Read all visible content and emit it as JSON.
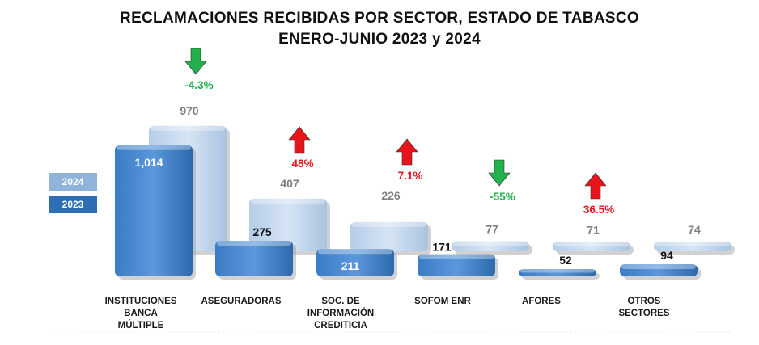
{
  "chart_data": {
    "type": "bar",
    "title": "RECLAMACIONES RECIBIDAS POR SECTOR, ESTADO DE TABASCO",
    "subtitle": "ENERO-JUNIO 2023 y 2024",
    "categories": [
      "INSTITUCIONES\nBANCA\nMÚLTIPLE",
      "ASEGURADORAS",
      "SOC. DE\nINFORMACIÓN\nCREDITICIA",
      "SOFOM ENR",
      "AFORES",
      "OTROS\nSECTORES"
    ],
    "series": [
      {
        "name": "2023",
        "values": [
          1014,
          275,
          211,
          171,
          52,
          94
        ],
        "labels": [
          "1,014",
          "275",
          "211",
          "171",
          "52",
          "94"
        ],
        "color": "#2e6eb5"
      },
      {
        "name": "2024",
        "values": [
          970,
          407,
          226,
          77,
          71,
          74
        ],
        "labels": [
          "970",
          "407",
          "226",
          "77",
          "71",
          "74"
        ],
        "color": "#bcd4ec"
      }
    ],
    "changes": [
      {
        "label": "-4.3%",
        "direction": "down",
        "color": "#22b14c"
      },
      {
        "label": "48%",
        "direction": "up",
        "color": "#e8141b"
      },
      {
        "label": "7.1%",
        "direction": "up",
        "color": "#e8141b"
      },
      {
        "label": "-55%",
        "direction": "down",
        "color": "#22b14c"
      },
      {
        "label": "36.5%",
        "direction": "up",
        "color": "#e8141b"
      },
      {
        "label": "",
        "direction": "none",
        "color": ""
      }
    ],
    "legend": [
      "2024",
      "2023"
    ],
    "ylim": [
      0,
      1100
    ]
  }
}
